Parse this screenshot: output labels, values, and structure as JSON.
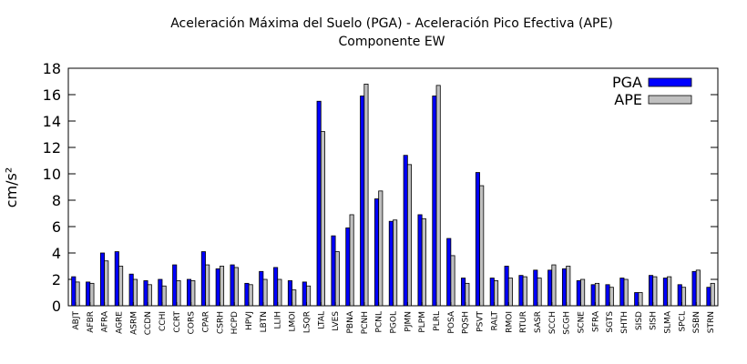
{
  "chart_data": {
    "type": "bar",
    "title": "Aceleración Máxima del Suelo (PGA) -  Aceleración Pico Efectiva (APE)",
    "subtitle": "Componente EW",
    "xlabel": "",
    "ylabel": "cm/s²",
    "ylim": [
      0,
      18
    ],
    "yticks": [
      0,
      2,
      4,
      6,
      8,
      10,
      12,
      14,
      16,
      18
    ],
    "legend_position": "top-right",
    "categories": [
      "ABJT",
      "AFBR",
      "AFRA",
      "AGRE",
      "ASRM",
      "CCDN",
      "CCHI",
      "CCRT",
      "CORS",
      "CPAR",
      "CSRH",
      "HCPD",
      "HPVJ",
      "LBTN",
      "LLIH",
      "LMOI",
      "LSQR",
      "LTAL",
      "LVES",
      "PBNA",
      "PCNH",
      "PCNL",
      "PGOL",
      "PJMN",
      "PLPM",
      "PLRL",
      "POSA",
      "PQSH",
      "PSVT",
      "RALT",
      "RMOI",
      "RTUR",
      "SASR",
      "SCCH",
      "SCGH",
      "SCNE",
      "SFRA",
      "SGTS",
      "SHTH",
      "SISD",
      "SISH",
      "SLMA",
      "SPCL",
      "SSBN",
      "STRN"
    ],
    "series": [
      {
        "name": "PGA",
        "color": "#0000ff",
        "values": [
          2.2,
          1.8,
          4.0,
          4.1,
          2.4,
          1.9,
          2.0,
          3.1,
          2.0,
          4.1,
          2.8,
          3.1,
          1.7,
          2.6,
          2.9,
          1.9,
          1.8,
          15.5,
          5.3,
          5.9,
          15.9,
          8.1,
          6.4,
          11.4,
          6.9,
          15.9,
          5.1,
          2.1,
          10.1,
          2.1,
          3.0,
          2.3,
          2.7,
          2.7,
          2.8,
          1.9,
          1.6,
          1.6,
          2.1,
          1.0,
          2.3,
          2.1,
          1.6,
          2.6,
          1.4
        ]
      },
      {
        "name": "APE",
        "color": "#c0c0c0",
        "values": [
          1.8,
          1.7,
          3.4,
          3.0,
          2.0,
          1.6,
          1.5,
          1.9,
          1.9,
          3.1,
          3.0,
          2.9,
          1.6,
          2.0,
          2.0,
          1.2,
          1.5,
          13.2,
          4.1,
          6.9,
          16.8,
          8.7,
          6.5,
          10.7,
          6.6,
          16.7,
          3.8,
          1.7,
          9.1,
          1.9,
          2.1,
          2.2,
          2.1,
          3.1,
          3.0,
          2.0,
          1.7,
          1.4,
          2.0,
          1.0,
          2.2,
          2.2,
          1.4,
          2.7,
          1.7
        ]
      }
    ]
  }
}
